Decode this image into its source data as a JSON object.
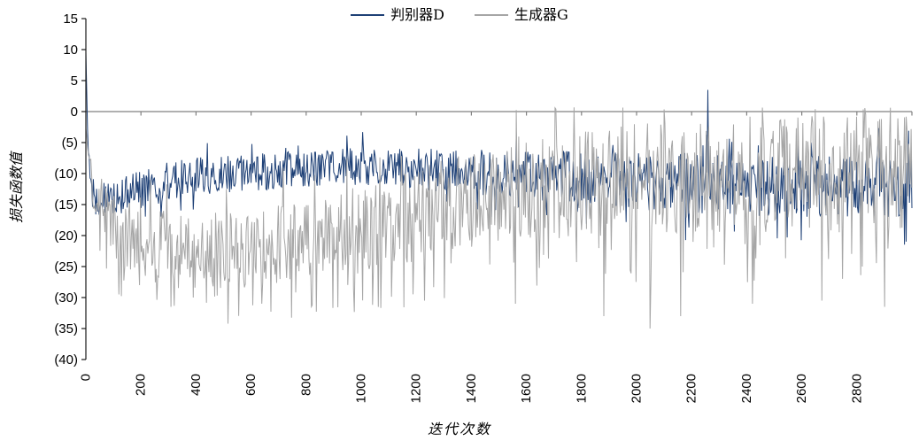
{
  "chart_data": {
    "type": "line",
    "title": "",
    "xlabel": "迭代次数",
    "ylabel": "损失函数值",
    "xlim": [
      0,
      3000
    ],
    "ylim": [
      -40,
      15
    ],
    "grid": "zero-line-only",
    "legend_position": "top-center",
    "negative_label_style": "parentheses",
    "x_ticks": [
      0,
      200,
      400,
      600,
      800,
      1000,
      1200,
      1400,
      1600,
      1800,
      2000,
      2200,
      2400,
      2600,
      2800
    ],
    "x_tick_labels": [
      "0",
      "200",
      "400",
      "600",
      "800",
      "1000",
      "1200",
      "1400",
      "1600",
      "1800",
      "2000",
      "2200",
      "2400",
      "2600",
      "2800"
    ],
    "x_tick_label_rotation": -90,
    "y_ticks": [
      {
        "value": 15,
        "label": "15"
      },
      {
        "value": 10,
        "label": "10"
      },
      {
        "value": 5,
        "label": "5"
      },
      {
        "value": 0,
        "label": "0"
      },
      {
        "value": -5,
        "label": "(5)"
      },
      {
        "value": -10,
        "label": "(10)"
      },
      {
        "value": -15,
        "label": "(15)"
      },
      {
        "value": -20,
        "label": "(20)"
      },
      {
        "value": -25,
        "label": "(25)"
      },
      {
        "value": -30,
        "label": "(30)"
      },
      {
        "value": -35,
        "label": "(35)"
      },
      {
        "value": -40,
        "label": "(40)"
      }
    ],
    "colors": {
      "discriminator": "#1E4076",
      "generator": "#A6A6A6",
      "zero_line": "#808080",
      "axis": "#1A1A1A"
    },
    "step": 3,
    "series": [
      {
        "name": "判别器D",
        "color": "#1E4076",
        "seed": 1987,
        "spike_prob": 0.05,
        "spike_down_bias": 0.5,
        "clamp_max": -1.3,
        "trend": [
          [
            0,
            9.5,
            0
          ],
          [
            6,
            -2,
            1
          ],
          [
            15,
            -12,
            2
          ],
          [
            30,
            -14,
            3
          ],
          [
            80,
            -13.8,
            3
          ],
          [
            150,
            -13.2,
            3.2
          ],
          [
            250,
            -11.8,
            3.2
          ],
          [
            400,
            -10.4,
            3
          ],
          [
            600,
            -9.8,
            3
          ],
          [
            800,
            -9.2,
            3
          ],
          [
            1000,
            -8.8,
            3
          ],
          [
            1150,
            -9.0,
            3.2
          ],
          [
            1300,
            -9.5,
            3.5
          ],
          [
            1500,
            -10.0,
            3.8
          ],
          [
            1700,
            -10.5,
            4.2
          ],
          [
            1900,
            -11.0,
            4.5
          ],
          [
            2100,
            -11.4,
            4.8
          ],
          [
            2300,
            -11.8,
            5.0
          ],
          [
            2600,
            -12.0,
            5.0
          ],
          [
            3000,
            -12.0,
            5.0
          ]
        ],
        "forced_points": [
          [
            0,
            9.5
          ],
          [
            2260,
            3.5
          ]
        ]
      },
      {
        "name": "生成器G",
        "color": "#A6A6A6",
        "seed": 4242,
        "spike_prob": 0.09,
        "spike_down_bias": 0.68,
        "clamp_max": 0.7,
        "trend": [
          [
            0,
            -2.5,
            0.5
          ],
          [
            10,
            -7,
            2
          ],
          [
            25,
            -13,
            3
          ],
          [
            60,
            -16.5,
            4.5
          ],
          [
            120,
            -19,
            5.5
          ],
          [
            200,
            -21,
            6
          ],
          [
            350,
            -22.5,
            6.5
          ],
          [
            550,
            -22,
            6.5
          ],
          [
            750,
            -21,
            6.5
          ],
          [
            950,
            -19.5,
            7
          ],
          [
            1150,
            -17.5,
            7.5
          ],
          [
            1350,
            -15,
            8
          ],
          [
            1550,
            -13.5,
            8
          ],
          [
            1750,
            -12,
            8.5
          ],
          [
            1950,
            -11,
            9
          ],
          [
            2200,
            -10.5,
            9
          ],
          [
            2500,
            -10,
            9.5
          ],
          [
            2800,
            -10,
            9.5
          ],
          [
            3000,
            -9.5,
            9.5
          ]
        ],
        "forced_points": [
          [
            120,
            -29.5
          ],
          [
            310,
            -31.5
          ],
          [
            390,
            -30
          ],
          [
            640,
            -31
          ],
          [
            1230,
            -30.5
          ],
          [
            1560,
            -31
          ],
          [
            1880,
            -33
          ],
          [
            2050,
            -35
          ],
          [
            2160,
            -33
          ],
          [
            2420,
            -31
          ],
          [
            2674,
            -30.5
          ],
          [
            2900,
            -31.5
          ]
        ]
      }
    ]
  },
  "legend": {
    "items": [
      {
        "label": "判别器D"
      },
      {
        "label": "生成器G"
      }
    ]
  },
  "axes": {
    "x_title": "迭代次数",
    "y_title": "损失函数值"
  }
}
